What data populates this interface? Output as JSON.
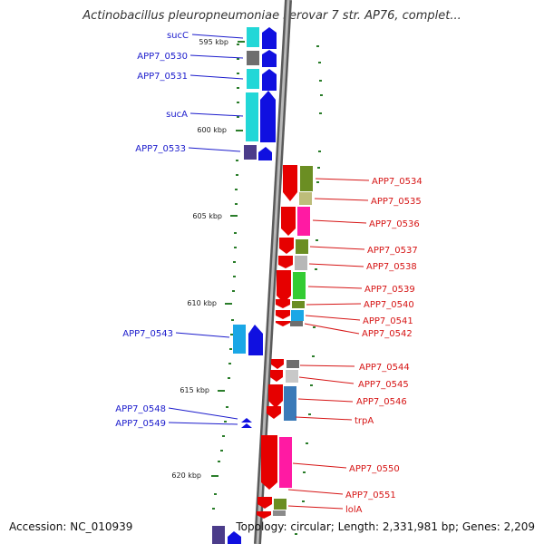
{
  "header": {
    "title": "Actinobacillus pleuropneumoniae serovar 7 str. AP76, complet..."
  },
  "footer": {
    "accession": "Accession: NC_010939",
    "summary": "Topology: circular; Length: 2,331,981 bp; Genes: 2,209"
  },
  "scale": {
    "ticks": [
      {
        "label": "595 kbp"
      },
      {
        "label": "600 kbp"
      },
      {
        "label": "605 kbp"
      },
      {
        "label": "610 kbp"
      },
      {
        "label": "615 kbp"
      },
      {
        "label": "620 kbp"
      }
    ]
  },
  "genes_left": [
    {
      "name": "sucC"
    },
    {
      "name": "APP7_0530"
    },
    {
      "name": "APP7_0531"
    },
    {
      "name": "sucA"
    },
    {
      "name": "APP7_0533"
    },
    {
      "name": "APP7_0543"
    },
    {
      "name": "APP7_0548"
    },
    {
      "name": "APP7_0549"
    }
  ],
  "genes_right": [
    {
      "name": "APP7_0534"
    },
    {
      "name": "APP7_0535"
    },
    {
      "name": "APP7_0536"
    },
    {
      "name": "APP7_0537"
    },
    {
      "name": "APP7_0538"
    },
    {
      "name": "APP7_0539"
    },
    {
      "name": "APP7_0540"
    },
    {
      "name": "APP7_0541"
    },
    {
      "name": "APP7_0542"
    },
    {
      "name": "APP7_0544"
    },
    {
      "name": "APP7_0545"
    },
    {
      "name": "APP7_0546"
    },
    {
      "name": "trpA"
    },
    {
      "name": "APP7_0550"
    },
    {
      "name": "APP7_0551"
    },
    {
      "name": "lolA"
    }
  ],
  "colors": {
    "left_label": "#1b1bcc",
    "right_label": "#d61515",
    "backbone": "#8a8a8a",
    "tick": "#2a7d2a"
  }
}
